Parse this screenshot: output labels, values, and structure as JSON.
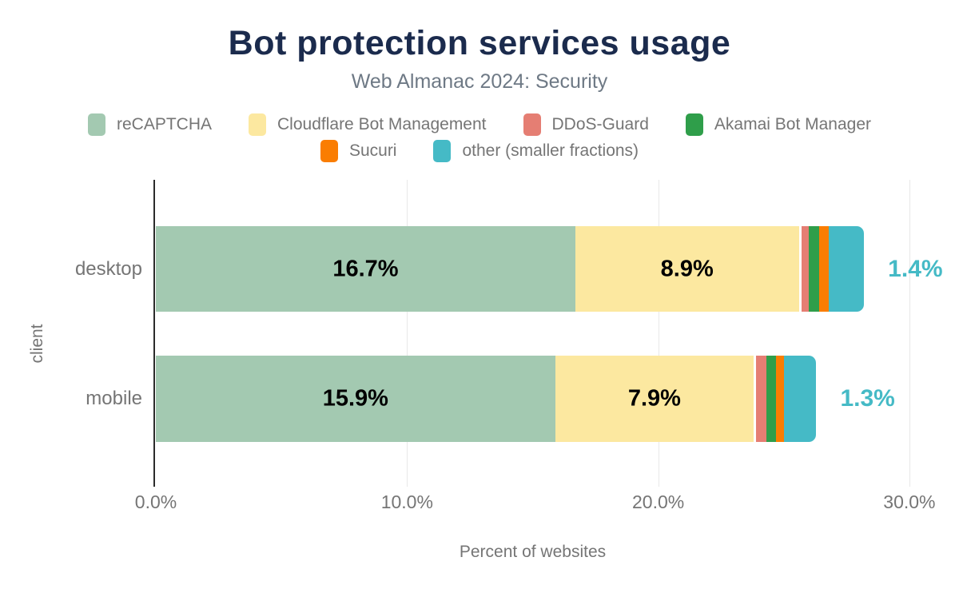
{
  "title": "Bot protection services usage",
  "subtitle": "Web Almanac 2024: Security",
  "colors": {
    "title": "#1b2b4d",
    "subtitle": "#6e7985",
    "axis_text": "#757575",
    "axis_line": "#2b2b2b",
    "gridline": "#e8e8e8",
    "end_label": "#45bac6"
  },
  "legend": {
    "rows": [
      [
        0,
        1,
        2,
        3
      ],
      [
        4,
        5
      ]
    ],
    "items": [
      {
        "label": "reCAPTCHA",
        "color": "#a3c9b1"
      },
      {
        "label": "Cloudflare Bot Management",
        "color": "#fce8a0"
      },
      {
        "label": "DDoS-Guard",
        "color": "#e57e73"
      },
      {
        "label": "Akamai Bot Manager",
        "color": "#2f9e4a"
      },
      {
        "label": "Sucuri",
        "color": "#fa7d02"
      },
      {
        "label": "other (smaller fractions)",
        "color": "#45bac6"
      }
    ]
  },
  "chart_data": {
    "type": "bar",
    "orientation": "horizontal",
    "stacked": true,
    "title": "Bot protection services usage",
    "subtitle": "Web Almanac 2024: Security",
    "categories": [
      "desktop",
      "mobile"
    ],
    "series": [
      {
        "name": "reCAPTCHA",
        "color": "#a3c9b1",
        "values": [
          16.7,
          15.9
        ]
      },
      {
        "name": "Cloudflare Bot Management",
        "color": "#fce8a0",
        "values": [
          8.9,
          7.9
        ]
      },
      {
        "name": "DDoS-Guard",
        "color": "#e57e73",
        "values": [
          0.3,
          0.4
        ]
      },
      {
        "name": "Akamai Bot Manager",
        "color": "#2f9e4a",
        "values": [
          0.4,
          0.4
        ]
      },
      {
        "name": "Sucuri",
        "color": "#fa7d02",
        "values": [
          0.4,
          0.3
        ]
      },
      {
        "name": "other (smaller fractions)",
        "color": "#45bac6",
        "values": [
          1.4,
          1.3
        ]
      }
    ],
    "bar_labels": [
      [
        "16.7%",
        "8.9%"
      ],
      [
        "15.9%",
        "7.9%"
      ]
    ],
    "end_labels": [
      "1.4%",
      "1.3%"
    ],
    "xlabel": "Percent of websites",
    "ylabel": "client",
    "x_ticks": [
      "0.0%",
      "10.0%",
      "20.0%",
      "30.0%"
    ],
    "xlim": [
      0,
      30
    ],
    "grid": "vertical",
    "legend_position": "top"
  }
}
